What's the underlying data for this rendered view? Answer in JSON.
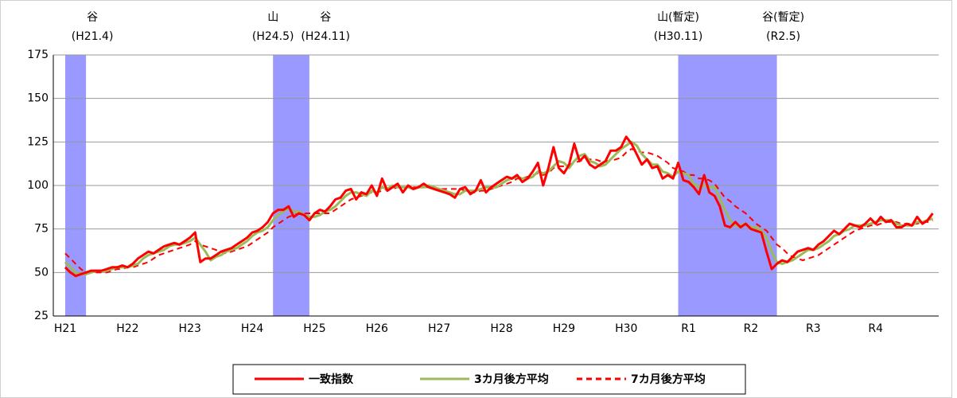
{
  "chart_data": {
    "type": "line",
    "categories": [
      "H21",
      null,
      null,
      null,
      null,
      null,
      null,
      null,
      null,
      null,
      null,
      null,
      "H22",
      null,
      null,
      null,
      null,
      null,
      null,
      null,
      null,
      null,
      null,
      null,
      "H23",
      null,
      null,
      null,
      null,
      null,
      null,
      null,
      null,
      null,
      null,
      null,
      "H24",
      null,
      null,
      null,
      null,
      null,
      null,
      null,
      null,
      null,
      null,
      null,
      "H25",
      null,
      null,
      null,
      null,
      null,
      null,
      null,
      null,
      null,
      null,
      null,
      "H26",
      null,
      null,
      null,
      null,
      null,
      null,
      null,
      null,
      null,
      null,
      null,
      "H27",
      null,
      null,
      null,
      null,
      null,
      null,
      null,
      null,
      null,
      null,
      null,
      "H28",
      null,
      null,
      null,
      null,
      null,
      null,
      null,
      null,
      null,
      null,
      null,
      "H29",
      null,
      null,
      null,
      null,
      null,
      null,
      null,
      null,
      null,
      null,
      null,
      "H30",
      null,
      null,
      null,
      null,
      null,
      null,
      null,
      null,
      null,
      null,
      null,
      "R1",
      null,
      null,
      null,
      null,
      null,
      null,
      null,
      null,
      null,
      null,
      null,
      "R2",
      null,
      null,
      null,
      null,
      null,
      null,
      null,
      null,
      null,
      null,
      null,
      "R3",
      null,
      null,
      null,
      null,
      null,
      null,
      null,
      null,
      null,
      null,
      null,
      "R4",
      null,
      null,
      null,
      null,
      null,
      null,
      null,
      null,
      null,
      null,
      null
    ],
    "series": [
      {
        "name": "一致指数",
        "color": "#ff0000",
        "dash": false,
        "values": [
          53,
          50,
          48,
          49,
          50,
          51,
          51,
          51,
          52,
          53,
          53,
          54,
          53,
          55,
          58,
          60,
          62,
          61,
          63,
          65,
          66,
          67,
          66,
          68,
          70,
          73,
          56,
          58,
          58,
          60,
          62,
          63,
          64,
          66,
          68,
          70,
          73,
          74,
          76,
          79,
          84,
          86,
          86,
          88,
          82,
          84,
          83,
          80,
          84,
          86,
          85,
          88,
          92,
          93,
          97,
          98,
          92,
          96,
          95,
          100,
          94,
          104,
          97,
          99,
          101,
          96,
          100,
          98,
          99,
          101,
          99,
          98,
          97,
          96,
          95,
          93,
          98,
          99,
          95,
          97,
          103,
          96,
          99,
          101,
          103,
          105,
          104,
          106,
          102,
          104,
          108,
          113,
          100,
          110,
          122,
          110,
          107,
          112,
          124,
          114,
          117,
          112,
          110,
          112,
          114,
          120,
          120,
          122,
          128,
          124,
          118,
          112,
          115,
          110,
          111,
          104,
          106,
          104,
          113,
          103,
          102,
          99,
          95,
          106,
          96,
          94,
          88,
          77,
          76,
          79,
          76,
          78,
          75,
          74,
          73,
          62,
          52,
          55,
          57,
          56,
          59,
          62,
          63,
          64,
          63,
          66,
          68,
          71,
          74,
          72,
          75,
          78,
          77,
          76,
          78,
          81,
          78,
          82,
          79,
          80,
          76,
          76,
          78,
          77,
          82,
          78,
          80,
          84
        ]
      },
      {
        "name": "3カ月後方平均",
        "color": "#9bbb59",
        "dash": false,
        "values": [
          56,
          53,
          50,
          49,
          49,
          50,
          51,
          51,
          51,
          52,
          53,
          53,
          53,
          54,
          55,
          58,
          60,
          61,
          62,
          63,
          65,
          66,
          66,
          67,
          68,
          70,
          66,
          62,
          57,
          59,
          60,
          62,
          63,
          64,
          66,
          68,
          71,
          73,
          74,
          76,
          80,
          83,
          85,
          87,
          85,
          85,
          83,
          82,
          82,
          83,
          85,
          86,
          88,
          91,
          94,
          96,
          96,
          95,
          94,
          97,
          96,
          99,
          98,
          100,
          99,
          99,
          99,
          98,
          99,
          99,
          100,
          99,
          98,
          97,
          96,
          95,
          95,
          97,
          97,
          97,
          98,
          99,
          99,
          99,
          101,
          103,
          104,
          105,
          104,
          104,
          105,
          108,
          107,
          108,
          111,
          114,
          113,
          110,
          114,
          117,
          118,
          114,
          113,
          111,
          112,
          115,
          118,
          121,
          123,
          125,
          123,
          118,
          115,
          112,
          112,
          108,
          107,
          105,
          108,
          107,
          106,
          101,
          99,
          100,
          99,
          99,
          93,
          86,
          80,
          77,
          77,
          78,
          76,
          76,
          74,
          70,
          62,
          56,
          55,
          56,
          57,
          59,
          61,
          63,
          63,
          64,
          66,
          68,
          71,
          72,
          74,
          75,
          77,
          77,
          77,
          78,
          79,
          80,
          80,
          80,
          78,
          77,
          77,
          77,
          79,
          79,
          80,
          81
        ]
      },
      {
        "name": "7カ月後方平均",
        "color": "#ff0000",
        "dash": true,
        "values": [
          61,
          58,
          55,
          52,
          50,
          50,
          50,
          50,
          50,
          51,
          52,
          52,
          53,
          53,
          54,
          55,
          56,
          58,
          60,
          61,
          62,
          63,
          64,
          65,
          66,
          68,
          66,
          65,
          64,
          63,
          62,
          61,
          62,
          63,
          64,
          65,
          67,
          69,
          71,
          73,
          76,
          78,
          80,
          82,
          83,
          84,
          84,
          84,
          84,
          84,
          84,
          84,
          86,
          88,
          90,
          92,
          93,
          94,
          95,
          96,
          96,
          97,
          98,
          98,
          99,
          99,
          99,
          99,
          99,
          99,
          99,
          99,
          98,
          98,
          98,
          98,
          98,
          97,
          96,
          96,
          97,
          97,
          98,
          99,
          100,
          101,
          102,
          104,
          104,
          105,
          106,
          107,
          106,
          107,
          110,
          111,
          111,
          112,
          113,
          114,
          115,
          115,
          115,
          114,
          114,
          114,
          115,
          116,
          119,
          121,
          120,
          119,
          119,
          118,
          117,
          115,
          113,
          110,
          109,
          108,
          106,
          106,
          104,
          104,
          103,
          101,
          97,
          93,
          91,
          88,
          86,
          84,
          81,
          78,
          76,
          74,
          70,
          66,
          64,
          61,
          59,
          58,
          57,
          58,
          59,
          60,
          62,
          64,
          66,
          68,
          70,
          72,
          74,
          75,
          76,
          77,
          77,
          78,
          79,
          79,
          79,
          78,
          78,
          78,
          78,
          79,
          79,
          80
        ]
      }
    ],
    "ylim": [
      25,
      175
    ],
    "yticks": [
      25,
      50,
      75,
      100,
      125,
      150,
      175
    ],
    "grid": true,
    "recession_bands": [
      {
        "start": 0,
        "end": 3
      },
      {
        "start": 40,
        "end": 46
      },
      {
        "start": 118,
        "end": 136
      }
    ],
    "band_color": "#9999ff",
    "annotations": [
      {
        "label": "谷",
        "date": "(H21.4)",
        "index": 3
      },
      {
        "label": "山",
        "date": "(H24.5)",
        "index": 40
      },
      {
        "label": "谷",
        "date": "(H24.11)",
        "index": 46
      },
      {
        "label": "山(暫定)",
        "date": "(H30.11)",
        "index": 118
      },
      {
        "label": "谷(暫定)",
        "date": "(R2.5)",
        "index": 136
      }
    ],
    "legend": "bottom"
  }
}
